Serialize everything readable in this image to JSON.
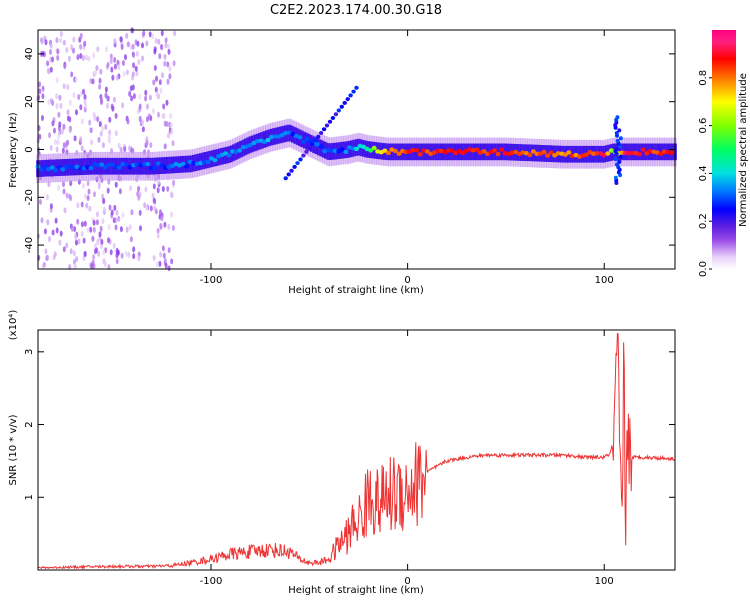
{
  "title": "C2E2.2023.174.00.30.G18",
  "chart_data": [
    {
      "type": "heatmap",
      "xlabel": "Height of straight line (km)",
      "ylabel": "Frequency (Hz)",
      "xlim": [
        -188,
        136
      ],
      "ylim": [
        -50,
        50
      ],
      "xticks": [
        -100,
        0,
        100
      ],
      "yticks": [
        -40,
        -20,
        0,
        20,
        40
      ],
      "colorbar": {
        "label": "Normalized spectral amplitude",
        "ticks": [
          0.0,
          0.2,
          0.4,
          0.6,
          0.8
        ],
        "range": [
          0,
          1
        ]
      },
      "ridge": {
        "x": [
          -188,
          -160,
          -130,
          -110,
          -100,
          -90,
          -80,
          -70,
          -60,
          -50,
          -40,
          -30,
          -25,
          -20,
          -10,
          0,
          20,
          50,
          80,
          95,
          100,
          105,
          110,
          120,
          136
        ],
        "freq": [
          -8,
          -7,
          -7,
          -6,
          -4,
          -2,
          2,
          5,
          7,
          3,
          -1,
          0,
          1,
          0,
          -1,
          -1,
          -1,
          -1,
          -2,
          -2,
          -2,
          -1,
          -1,
          -1,
          -1
        ],
        "amplitude": [
          0.3,
          0.3,
          0.3,
          0.3,
          0.35,
          0.35,
          0.35,
          0.35,
          0.3,
          0.3,
          0.3,
          0.3,
          0.4,
          0.5,
          0.8,
          0.85,
          0.85,
          0.85,
          0.8,
          0.85,
          0.9,
          0.5,
          0.9,
          0.85,
          0.85
        ]
      }
    },
    {
      "type": "line",
      "xlabel": "Height of straight line (km)",
      "ylabel": "SNR (10 * v/v)",
      "yscale_label": "(x10⁴)",
      "xlim": [
        -188,
        136
      ],
      "ylim": [
        0,
        3.3
      ],
      "xticks": [
        -100,
        0,
        100
      ],
      "yticks": [
        1,
        2,
        3
      ],
      "color": "#ee3333",
      "series": [
        {
          "x": [
            -188,
            -170,
            -150,
            -130,
            -120,
            -110,
            -100,
            -90,
            -80,
            -70,
            -60,
            -55,
            -50,
            -45,
            -40,
            -35,
            -30,
            -28,
            -25,
            -22,
            -20,
            -18,
            -15,
            -10,
            -5,
            0,
            5,
            10,
            20,
            30,
            40,
            50,
            60,
            70,
            80,
            90,
            100,
            103,
            105,
            106,
            107,
            108,
            109,
            110,
            111,
            112,
            113,
            115,
            120,
            136
          ],
          "y": [
            0.03,
            0.04,
            0.05,
            0.05,
            0.06,
            0.1,
            0.15,
            0.22,
            0.25,
            0.28,
            0.25,
            0.15,
            0.1,
            0.1,
            0.15,
            0.35,
            0.5,
            0.6,
            0.7,
            0.8,
            1.0,
            1.05,
            0.9,
            1.0,
            1.1,
            1.1,
            1.2,
            1.35,
            1.5,
            1.55,
            1.58,
            1.58,
            1.58,
            1.58,
            1.58,
            1.55,
            1.55,
            1.6,
            1.8,
            2.5,
            3.2,
            1.2,
            0.2,
            2.9,
            0.5,
            2.2,
            1.5,
            1.55,
            1.55,
            1.53
          ]
        }
      ]
    }
  ]
}
